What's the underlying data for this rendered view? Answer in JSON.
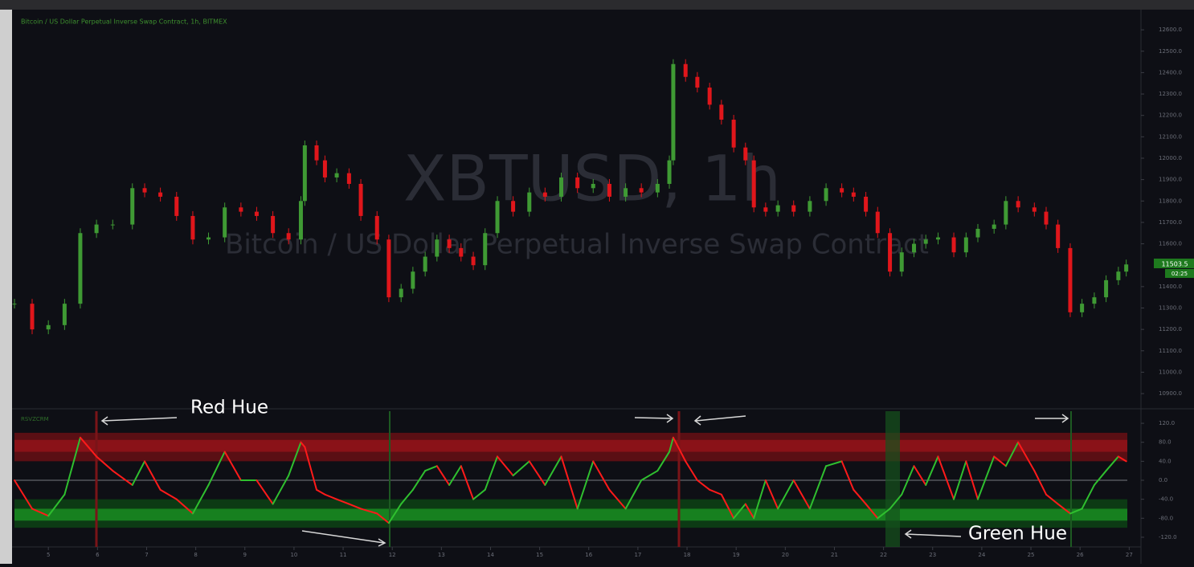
{
  "chart_data": [
    {
      "type": "candlestick",
      "title": "Bitcoin / US Dollar Perpetual Inverse Swap Contract, 1h, BITMEX",
      "watermark": "XBTUSD, 1h",
      "watermark_subtitle": "Bitcoin / US Dollar Perpetual Inverse Swap Contract",
      "countdown": "02:25",
      "up_color": "#3f9a34",
      "down_color": "#e0161b",
      "x": [
        4.31,
        4.67,
        5.0,
        5.33,
        5.65,
        5.98,
        6.31,
        6.71,
        6.96,
        7.28,
        7.61,
        7.94,
        8.26,
        8.59,
        8.92,
        9.24,
        9.57,
        9.89,
        10.14,
        10.22,
        10.46,
        10.63,
        10.87,
        11.12,
        11.36,
        11.69,
        11.93,
        12.18,
        12.42,
        12.67,
        12.91,
        13.16,
        13.4,
        13.65,
        13.89,
        14.14,
        14.46,
        14.79,
        15.11,
        15.44,
        15.77,
        16.09,
        16.42,
        16.75,
        17.07,
        17.4,
        17.64,
        17.72,
        17.97,
        18.21,
        18.46,
        18.7,
        18.95,
        19.19,
        19.36,
        19.6,
        19.85,
        20.17,
        20.5,
        20.83,
        21.15,
        21.39,
        21.64,
        21.88,
        22.13,
        22.37,
        22.62,
        22.86,
        23.11,
        23.43,
        23.68,
        23.92,
        24.25,
        24.49,
        24.74,
        25.07,
        25.31,
        25.55,
        25.8,
        26.04,
        26.29,
        26.53,
        26.78,
        26.94
      ],
      "values": [
        11320,
        11200,
        11220,
        11320,
        11650,
        11690,
        11690,
        11860,
        11840,
        11820,
        11730,
        11620,
        11630,
        11770,
        11750,
        11730,
        11650,
        11620,
        11800,
        12060,
        11990,
        11910,
        11930,
        11880,
        11730,
        11620,
        11350,
        11390,
        11470,
        11540,
        11620,
        11580,
        11540,
        11500,
        11650,
        11800,
        11750,
        11840,
        11820,
        11910,
        11860,
        11880,
        11820,
        11860,
        11840,
        11880,
        11990,
        12440,
        12380,
        12330,
        12250,
        12180,
        12050,
        11990,
        11770,
        11750,
        11780,
        11750,
        11800,
        11860,
        11840,
        11820,
        11750,
        11650,
        11470,
        11560,
        11600,
        11620,
        11630,
        11560,
        11630,
        11670,
        11690,
        11800,
        11770,
        11750,
        11690,
        11580,
        11280,
        11320,
        11350,
        11430,
        11470,
        11503.5
      ],
      "xlim": [
        4.31,
        27.24
      ],
      "ylim": [
        10844,
        12683
      ],
      "yticks": [
        {
          "value": 12600,
          "label": "12600.0"
        },
        {
          "value": 12500,
          "label": "12500.0"
        },
        {
          "value": 12400,
          "label": "12400.0"
        },
        {
          "value": 12300,
          "label": "12300.0"
        },
        {
          "value": 12200,
          "label": "12200.0"
        },
        {
          "value": 12100,
          "label": "12100.0"
        },
        {
          "value": 12000,
          "label": "12000.0"
        },
        {
          "value": 11900,
          "label": "11900.0"
        },
        {
          "value": 11800,
          "label": "11800.0"
        },
        {
          "value": 11700,
          "label": "11700.0"
        },
        {
          "value": 11600,
          "label": "11600.0"
        },
        {
          "value": 11400,
          "label": "11400.0"
        },
        {
          "value": 11300,
          "label": "11300.0"
        },
        {
          "value": 11200,
          "label": "11200.0"
        },
        {
          "value": 11100,
          "label": "11100.0"
        },
        {
          "value": 11000,
          "label": "11000.0"
        },
        {
          "value": 10900,
          "label": "10900.0"
        }
      ]
    },
    {
      "type": "line",
      "title": "RSVZCRM",
      "up_color": "#2fbf2f",
      "down_color": "#ff1a1a",
      "bands": [
        {
          "range": [
            40,
            100
          ],
          "color": "#5a0f14"
        },
        {
          "range": [
            60,
            85
          ],
          "color": "#8a1218"
        },
        {
          "range": [
            -100,
            -40
          ],
          "color": "#0c3a14"
        },
        {
          "range": [
            -85,
            -60
          ],
          "color": "#17801f"
        }
      ],
      "x": [
        4.31,
        4.67,
        5.0,
        5.33,
        5.65,
        5.98,
        6.31,
        6.71,
        6.96,
        7.28,
        7.61,
        7.94,
        8.26,
        8.59,
        8.92,
        9.24,
        9.57,
        9.89,
        10.14,
        10.22,
        10.46,
        10.63,
        10.87,
        11.12,
        11.36,
        11.69,
        11.93,
        12.18,
        12.42,
        12.67,
        12.91,
        13.16,
        13.4,
        13.65,
        13.89,
        14.14,
        14.46,
        14.79,
        15.11,
        15.44,
        15.77,
        16.09,
        16.42,
        16.75,
        17.07,
        17.4,
        17.64,
        17.72,
        17.97,
        18.21,
        18.46,
        18.7,
        18.95,
        19.19,
        19.36,
        19.6,
        19.85,
        20.17,
        20.5,
        20.83,
        21.15,
        21.39,
        21.64,
        21.88,
        22.13,
        22.37,
        22.62,
        22.86,
        23.11,
        23.43,
        23.68,
        23.92,
        24.25,
        24.49,
        24.74,
        25.07,
        25.31,
        25.55,
        25.8,
        26.04,
        26.29,
        26.53,
        26.78,
        26.94
      ],
      "values": [
        0,
        -60,
        -75,
        -30,
        90,
        50,
        20,
        -10,
        40,
        -20,
        -40,
        -70,
        -10,
        60,
        0,
        0,
        -50,
        10,
        80,
        70,
        -20,
        -30,
        -40,
        -50,
        -60,
        -70,
        -90,
        -50,
        -20,
        20,
        30,
        -10,
        30,
        -40,
        -20,
        50,
        10,
        40,
        -10,
        50,
        -60,
        40,
        -20,
        -60,
        0,
        20,
        60,
        90,
        40,
        0,
        -20,
        -30,
        -80,
        -50,
        -80,
        0,
        -60,
        0,
        -60,
        30,
        40,
        -20,
        -50,
        -80,
        -60,
        -30,
        30,
        -10,
        50,
        -40,
        40,
        -40,
        50,
        30,
        80,
        20,
        -30,
        -50,
        -70,
        -60,
        -10,
        20,
        50,
        40
      ],
      "xlim": [
        4.31,
        27.24
      ],
      "ylim": [
        -140.4,
        145.5
      ],
      "yticks": [
        {
          "value": 120,
          "label": "120.0"
        },
        {
          "value": 80,
          "label": "80.0"
        },
        {
          "value": 40,
          "label": "40.0"
        },
        {
          "value": 0,
          "label": "0.0"
        },
        {
          "value": -40,
          "label": "-40.0"
        },
        {
          "value": -80,
          "label": "-80.0"
        },
        {
          "value": -120,
          "label": "-120.0"
        }
      ],
      "xticks": [
        5,
        6,
        7,
        8,
        9,
        10,
        11,
        12,
        13,
        14,
        15,
        16,
        17,
        18,
        19,
        20,
        21,
        22,
        23,
        24,
        25,
        26,
        27
      ],
      "annotations": [
        "Red Hue",
        "Green Hue"
      ]
    }
  ]
}
